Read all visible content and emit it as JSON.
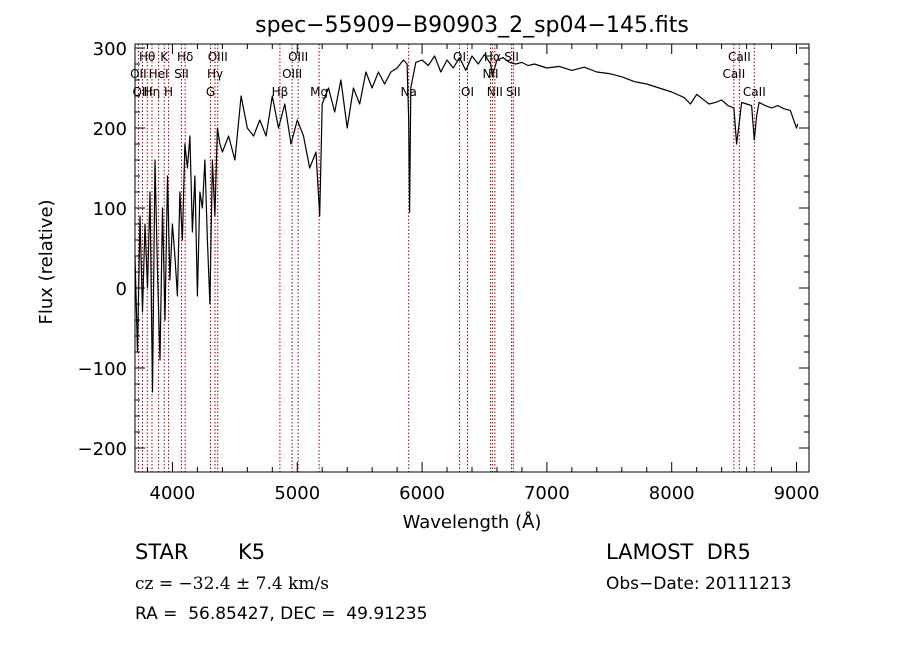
{
  "chart_data": {
    "type": "line",
    "title": "spec−55909−B90903_2_sp04−145.fits",
    "xlabel": "Wavelength (Å)",
    "ylabel": "Flux (relative)",
    "xlim": [
      3700,
      9100
    ],
    "ylim": [
      -230,
      305
    ],
    "x_ticks": [
      4000,
      5000,
      6000,
      7000,
      8000,
      9000
    ],
    "y_ticks": [
      -200,
      -100,
      0,
      100,
      200,
      300
    ],
    "y_tick_labels": [
      "−200",
      "−100",
      "0",
      "100",
      "200",
      "300"
    ],
    "line_color": "#000000",
    "marker_color": "#990000",
    "series": [
      {
        "x": [
          3700,
          3720,
          3740,
          3760,
          3780,
          3800,
          3820,
          3840,
          3860,
          3880,
          3900,
          3920,
          3940,
          3960,
          3980,
          4000,
          4020,
          4040,
          4060,
          4080,
          4100,
          4120,
          4140,
          4160,
          4180,
          4200,
          4220,
          4240,
          4260,
          4280,
          4300,
          4320,
          4340,
          4360,
          4380,
          4400,
          4450,
          4500,
          4550,
          4600,
          4650,
          4700,
          4750,
          4800,
          4850,
          4900,
          4950,
          5000,
          5050,
          5100,
          5150,
          5180,
          5200,
          5250,
          5300,
          5350,
          5400,
          5450,
          5500,
          5550,
          5600,
          5650,
          5700,
          5750,
          5800,
          5850,
          5880,
          5893,
          5900,
          5910,
          5950,
          6000,
          6050,
          6100,
          6150,
          6200,
          6250,
          6300,
          6350,
          6400,
          6450,
          6500,
          6550,
          6563,
          6600,
          6650,
          6700,
          6750,
          6800,
          6850,
          6900,
          7000,
          7100,
          7200,
          7300,
          7400,
          7500,
          7600,
          7700,
          7800,
          7900,
          8000,
          8100,
          8150,
          8200,
          8250,
          8300,
          8350,
          8400,
          8450,
          8498,
          8520,
          8542,
          8560,
          8600,
          8640,
          8662,
          8680,
          8700,
          8750,
          8800,
          8850,
          8900,
          8950,
          9000,
          9010
        ],
        "y": [
          40,
          -80,
          90,
          -30,
          80,
          0,
          120,
          -130,
          160,
          20,
          -90,
          100,
          -40,
          140,
          10,
          80,
          40,
          -10,
          120,
          60,
          180,
          150,
          190,
          70,
          140,
          -10,
          120,
          100,
          160,
          60,
          -20,
          160,
          90,
          200,
          180,
          170,
          190,
          160,
          240,
          200,
          190,
          210,
          190,
          240,
          200,
          230,
          180,
          210,
          190,
          150,
          170,
          90,
          230,
          250,
          220,
          260,
          200,
          250,
          230,
          270,
          250,
          270,
          255,
          270,
          275,
          285,
          280,
          210,
          95,
          250,
          282,
          285,
          278,
          290,
          270,
          285,
          275,
          288,
          272,
          290,
          280,
          292,
          280,
          265,
          285,
          288,
          282,
          280,
          282,
          278,
          280,
          275,
          277,
          272,
          276,
          270,
          268,
          264,
          258,
          255,
          250,
          245,
          238,
          230,
          242,
          236,
          230,
          232,
          235,
          228,
          225,
          180,
          208,
          232,
          230,
          228,
          185,
          215,
          232,
          228,
          225,
          228,
          224,
          222,
          200,
          205
        ]
      }
    ],
    "lines": [
      {
        "name": "Hθ",
        "x": 3798,
        "row": 1
      },
      {
        "name": "OII",
        "x": 3727,
        "row": 2
      },
      {
        "name": "OIII",
        "x": 3760,
        "row": 3
      },
      {
        "name": "Hη",
        "x": 3836,
        "row": 3
      },
      {
        "name": "K",
        "x": 3934,
        "row": 1
      },
      {
        "name": "HeI",
        "x": 3889,
        "row": 2
      },
      {
        "name": "H",
        "x": 3969,
        "row": 3
      },
      {
        "name": "Hδ",
        "x": 4102,
        "row": 1
      },
      {
        "name": "SII",
        "x": 4072,
        "row": 2
      },
      {
        "name": "OIII",
        "x": 4363,
        "row": 1
      },
      {
        "name": "Hγ",
        "x": 4341,
        "row": 2
      },
      {
        "name": "G",
        "x": 4305,
        "row": 3
      },
      {
        "name": "Hβ",
        "x": 4861,
        "row": 3
      },
      {
        "name": "OIII",
        "x": 4959,
        "row": 2
      },
      {
        "name": "OIII",
        "x": 5007,
        "row": 1
      },
      {
        "name": "Mg",
        "x": 5175,
        "row": 3
      },
      {
        "name": "Na",
        "x": 5893,
        "row": 3
      },
      {
        "name": "OI",
        "x": 6300,
        "row": 1
      },
      {
        "name": "OI",
        "x": 6364,
        "row": 3
      },
      {
        "name": "Hα",
        "x": 6563,
        "row": 1
      },
      {
        "name": "NII",
        "x": 6548,
        "row": 2
      },
      {
        "name": "NII",
        "x": 6583,
        "row": 3
      },
      {
        "name": "SII",
        "x": 6717,
        "row": 1
      },
      {
        "name": "SII",
        "x": 6731,
        "row": 3
      },
      {
        "name": "CaII",
        "x": 8498,
        "row": 2
      },
      {
        "name": "CaII",
        "x": 8542,
        "row": 1
      },
      {
        "name": "CaII",
        "x": 8662,
        "row": 3
      }
    ]
  },
  "info": {
    "object_class": "STAR",
    "subclass": "K5",
    "survey": "LAMOST  DR5",
    "velocity": "cz = −32.4 ± 7.4 km/s",
    "obs_date": "Obs−Date: 20111213",
    "coords": "RA =  56.85427, DEC =  49.91235"
  }
}
